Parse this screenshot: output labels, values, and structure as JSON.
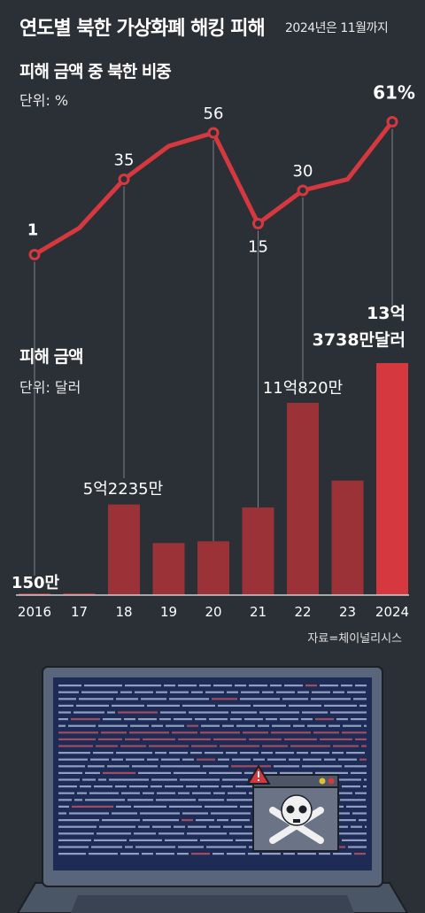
{
  "header": {
    "title": "연도별 북한 가상화폐 해킹 피해",
    "note": "2024년은 11월까지"
  },
  "line_section": {
    "title": "피해 금액 중 북한 비중",
    "unit": "단위: %"
  },
  "bar_section": {
    "title": "피해 금액",
    "unit": "단위: 달러"
  },
  "source": "자료=체이널리시스",
  "colors": {
    "background": "#2b2f36",
    "line": "#d6383f",
    "bar": "#9b3237",
    "bar_highlight": "#d6383f"
  },
  "chart_data": [
    {
      "type": "line",
      "title": "피해 금액 중 북한 비중",
      "unit": "%",
      "x": [
        "2016",
        "2017",
        "2018",
        "2019",
        "2020",
        "2021",
        "2022",
        "2023",
        "2024"
      ],
      "values": [
        1,
        13,
        35,
        50,
        56,
        15,
        30,
        35,
        61
      ],
      "labels": [
        {
          "index": 0,
          "text": "1"
        },
        {
          "index": 2,
          "text": "35"
        },
        {
          "index": 4,
          "text": "56"
        },
        {
          "index": 5,
          "text": "15"
        },
        {
          "index": 6,
          "text": "30"
        },
        {
          "index": 8,
          "text": "61%"
        }
      ],
      "ylim": [
        0,
        70
      ]
    },
    {
      "type": "bar",
      "title": "피해 금액",
      "unit": "달러",
      "categories": [
        "2016",
        "17",
        "18",
        "19",
        "20",
        "21",
        "22",
        "23",
        "2024"
      ],
      "values": [
        1500000,
        11000000,
        522350000,
        300000000,
        310000000,
        505000000,
        1108200000,
        660000000,
        1337380000
      ],
      "labels": [
        {
          "index": 0,
          "text": "150만"
        },
        {
          "index": 2,
          "text": "5억2235만"
        },
        {
          "index": 6,
          "text": "11억820만"
        },
        {
          "index": 8,
          "lines": [
            "13억",
            "3738만달러"
          ]
        }
      ],
      "ylim": [
        0,
        1337380000
      ]
    }
  ]
}
